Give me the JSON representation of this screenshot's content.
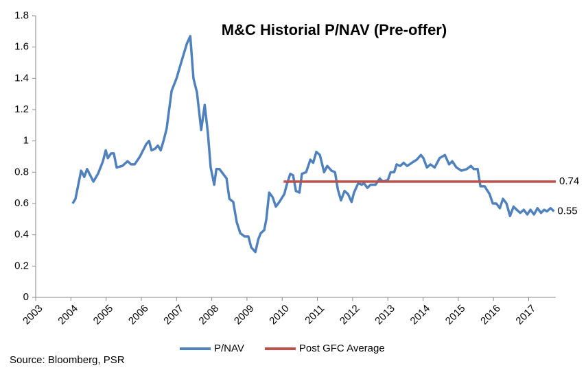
{
  "chart_data": {
    "type": "line",
    "title": "M&C Historial P/NAV (Pre-offer)",
    "source": "Source: Bloomberg, PSR",
    "xlim": [
      2003,
      2017.77
    ],
    "xticks": [
      2003,
      2004,
      2005,
      2006,
      2007,
      2008,
      2009,
      2010,
      2011,
      2012,
      2013,
      2014,
      2015,
      2016,
      2017
    ],
    "ylim": [
      0,
      1.8
    ],
    "yticks": [
      0,
      0.2,
      0.4,
      0.6,
      0.8,
      1,
      1.2,
      1.4,
      1.6,
      1.8
    ],
    "legend": "bottom",
    "series": [
      {
        "name": "P/NAV",
        "color": "#4f81bd",
        "x": [
          2004.05,
          2004.13,
          2004.29,
          2004.38,
          2004.46,
          2004.64,
          2004.77,
          2004.91,
          2004.99,
          2005.05,
          2005.14,
          2005.22,
          2005.3,
          2005.46,
          2005.61,
          2005.71,
          2005.81,
          2005.96,
          2006.14,
          2006.22,
          2006.29,
          2006.39,
          2006.47,
          2006.55,
          2006.63,
          2006.72,
          2006.86,
          2007.0,
          2007.13,
          2007.29,
          2007.39,
          2007.48,
          2007.58,
          2007.7,
          2007.8,
          2007.89,
          2007.97,
          2008.07,
          2008.13,
          2008.22,
          2008.42,
          2008.5,
          2008.61,
          2008.71,
          2008.81,
          2008.93,
          2009.04,
          2009.12,
          2009.24,
          2009.32,
          2009.39,
          2009.49,
          2009.55,
          2009.63,
          2009.73,
          2009.82,
          2009.92,
          2010.06,
          2010.13,
          2010.23,
          2010.31,
          2010.39,
          2010.49,
          2010.56,
          2010.68,
          2010.8,
          2010.88,
          2010.97,
          2011.07,
          2011.19,
          2011.28,
          2011.4,
          2011.5,
          2011.58,
          2011.67,
          2011.77,
          2011.87,
          2011.97,
          2012.04,
          2012.16,
          2012.26,
          2012.32,
          2012.42,
          2012.51,
          2012.65,
          2012.77,
          2012.86,
          2013.0,
          2013.08,
          2013.18,
          2013.25,
          2013.35,
          2013.45,
          2013.55,
          2013.68,
          2013.82,
          2013.94,
          2014.01,
          2014.11,
          2014.21,
          2014.33,
          2014.47,
          2014.62,
          2014.74,
          2014.83,
          2014.95,
          2015.09,
          2015.24,
          2015.36,
          2015.44,
          2015.55,
          2015.63,
          2015.75,
          2015.89,
          2015.98,
          2016.08,
          2016.18,
          2016.27,
          2016.37,
          2016.47,
          2016.57,
          2016.66,
          2016.76,
          2016.86,
          2016.96,
          2017.05,
          2017.15,
          2017.25,
          2017.35,
          2017.44,
          2017.52,
          2017.62,
          2017.72
        ],
        "values": [
          0.6,
          0.63,
          0.81,
          0.77,
          0.82,
          0.74,
          0.79,
          0.87,
          0.94,
          0.89,
          0.92,
          0.92,
          0.83,
          0.84,
          0.87,
          0.85,
          0.85,
          0.9,
          0.98,
          1.0,
          0.94,
          0.95,
          0.97,
          0.94,
          1.0,
          1.08,
          1.32,
          1.4,
          1.5,
          1.62,
          1.67,
          1.4,
          1.31,
          1.07,
          1.23,
          1.05,
          0.83,
          0.72,
          0.82,
          0.82,
          0.76,
          0.63,
          0.61,
          0.48,
          0.41,
          0.39,
          0.39,
          0.32,
          0.29,
          0.37,
          0.41,
          0.43,
          0.5,
          0.67,
          0.64,
          0.58,
          0.61,
          0.66,
          0.72,
          0.79,
          0.78,
          0.68,
          0.67,
          0.79,
          0.8,
          0.88,
          0.86,
          0.93,
          0.91,
          0.8,
          0.84,
          0.81,
          0.8,
          0.69,
          0.62,
          0.68,
          0.66,
          0.61,
          0.67,
          0.73,
          0.72,
          0.73,
          0.7,
          0.72,
          0.72,
          0.76,
          0.74,
          0.75,
          0.8,
          0.8,
          0.85,
          0.84,
          0.86,
          0.84,
          0.86,
          0.88,
          0.91,
          0.89,
          0.83,
          0.85,
          0.83,
          0.89,
          0.91,
          0.85,
          0.87,
          0.83,
          0.81,
          0.82,
          0.84,
          0.82,
          0.82,
          0.71,
          0.71,
          0.66,
          0.6,
          0.6,
          0.57,
          0.63,
          0.6,
          0.52,
          0.58,
          0.56,
          0.54,
          0.56,
          0.53,
          0.56,
          0.53,
          0.57,
          0.54,
          0.56,
          0.55,
          0.57,
          0.55
        ]
      },
      {
        "name": "Post GFC Average",
        "color": "#c0504d",
        "x": [
          2010.04,
          2017.77
        ],
        "values": [
          0.74,
          0.74
        ]
      }
    ]
  }
}
